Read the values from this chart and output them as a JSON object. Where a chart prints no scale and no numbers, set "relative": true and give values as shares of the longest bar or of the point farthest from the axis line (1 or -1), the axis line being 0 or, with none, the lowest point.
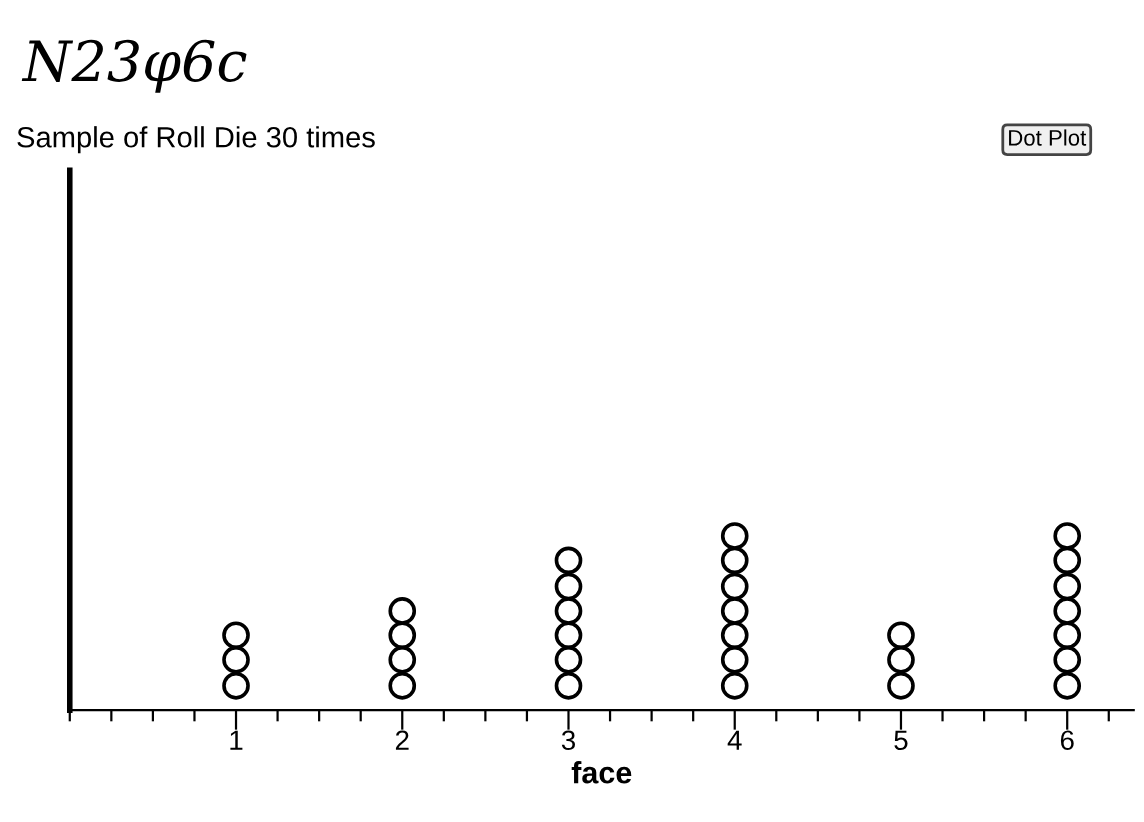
{
  "chart_data": {
    "type": "scatter",
    "title": "Sample of Roll Die 30 times",
    "xlabel": "face",
    "annotations": [
      "N23φ6c",
      "Dot Plot"
    ],
    "x": [
      1,
      1,
      1,
      2,
      2,
      2,
      2,
      3,
      3,
      3,
      3,
      3,
      3,
      4,
      4,
      4,
      4,
      4,
      4,
      4,
      5,
      5,
      5,
      6,
      6,
      6,
      6,
      6,
      6,
      6
    ],
    "values": [
      0.14,
      0.29,
      0.43,
      0.14,
      0.29,
      0.43,
      0.57,
      0.14,
      0.29,
      0.43,
      0.57,
      0.71,
      0.86,
      0.14,
      0.29,
      0.43,
      0.57,
      0.71,
      0.86,
      1,
      0.14,
      0.29,
      0.43,
      0.14,
      0.29,
      0.43,
      0.57,
      0.71,
      0.86,
      1
    ],
    "relative": true,
    "color": "#000000",
    "marker": "circle",
    "xlim": [
      0,
      6.4
    ],
    "xticks": [
      {
        "value": 0,
        "label": null
      },
      {
        "value": 0.25,
        "label": null
      },
      {
        "value": 0.5,
        "label": null
      },
      {
        "value": 0.75,
        "label": null
      },
      1,
      {
        "value": 1.25,
        "label": null
      },
      {
        "value": 1.5,
        "label": null
      },
      {
        "value": 1.75,
        "label": null
      },
      2,
      {
        "value": 2.25,
        "label": null
      },
      {
        "value": 2.5,
        "label": null
      },
      {
        "value": 2.75,
        "label": null
      },
      3,
      {
        "value": 3.25,
        "label": null
      },
      {
        "value": 3.5,
        "label": null
      },
      {
        "value": 3.75,
        "label": null
      },
      4,
      {
        "value": 4.25,
        "label": null
      },
      {
        "value": 4.5,
        "label": null
      },
      {
        "value": 4.75,
        "label": null
      },
      5,
      {
        "value": 5.25,
        "label": null
      },
      {
        "value": 5.5,
        "label": null
      },
      {
        "value": 5.75,
        "label": null
      },
      6,
      {
        "value": 6.25,
        "label": null
      }
    ],
    "tick_labels": "x",
    "grid": false,
    "legend": false
  }
}
